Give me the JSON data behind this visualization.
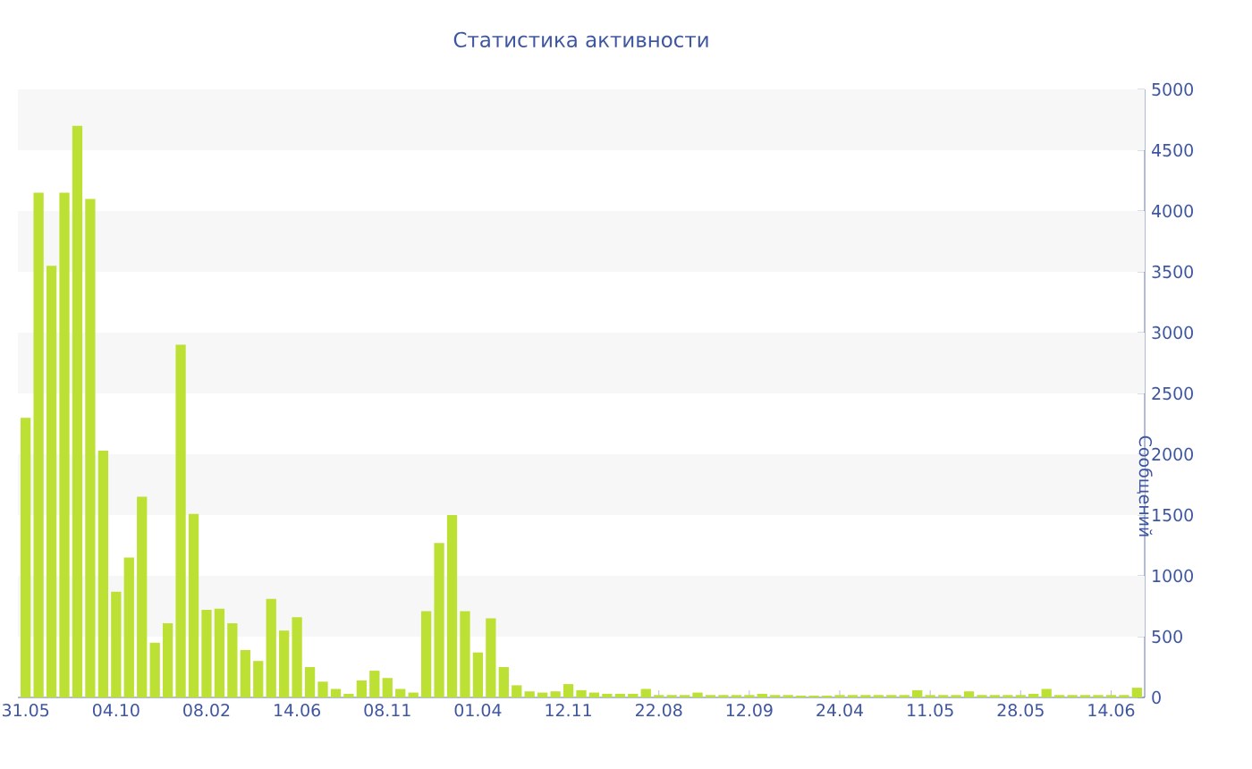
{
  "chart_data": {
    "type": "bar",
    "title": "Статистика активности",
    "ylabel": "Сообщений",
    "color": "#bce033",
    "categories": [
      "31.05",
      null,
      null,
      null,
      null,
      null,
      null,
      "04.10",
      null,
      null,
      null,
      null,
      null,
      null,
      "08.02",
      null,
      null,
      null,
      null,
      null,
      null,
      "14.06",
      null,
      null,
      null,
      null,
      null,
      null,
      "08.11",
      null,
      null,
      null,
      null,
      null,
      null,
      "01.04",
      null,
      null,
      null,
      null,
      null,
      null,
      "12.11",
      null,
      null,
      null,
      null,
      null,
      null,
      "22.08",
      null,
      null,
      null,
      null,
      null,
      null,
      "12.09",
      null,
      null,
      null,
      null,
      null,
      null,
      "24.04",
      null,
      null,
      null,
      null,
      null,
      null,
      "11.05",
      null,
      null,
      null,
      null,
      null,
      null,
      "28.05",
      null,
      null,
      null,
      null,
      null,
      null,
      "14.06",
      null,
      null
    ],
    "values": [
      2300,
      4150,
      3550,
      4150,
      4700,
      4100,
      2030,
      870,
      1150,
      1650,
      450,
      610,
      2900,
      1510,
      720,
      730,
      610,
      390,
      300,
      810,
      550,
      660,
      250,
      130,
      70,
      30,
      140,
      220,
      160,
      70,
      40,
      710,
      1270,
      1500,
      710,
      370,
      650,
      250,
      100,
      50,
      40,
      50,
      110,
      60,
      40,
      30,
      30,
      30,
      70,
      20,
      20,
      20,
      40,
      20,
      20,
      20,
      20,
      30,
      20,
      20,
      15,
      15,
      15,
      20,
      20,
      20,
      20,
      20,
      20,
      60,
      20,
      20,
      20,
      50,
      20,
      20,
      20,
      20,
      30,
      70,
      20,
      20,
      20,
      20,
      20,
      20,
      80
    ],
    "ylim": [
      0,
      5000
    ],
    "yticks": [
      0,
      500,
      1000,
      1500,
      2000,
      2500,
      3000,
      3500,
      4000,
      4500,
      5000
    ],
    "bands": [
      {
        "axis": "y",
        "from": 500,
        "to": 1000,
        "color": "#f7f7f7"
      },
      {
        "axis": "y",
        "from": 1500,
        "to": 2000,
        "color": "#f7f7f7"
      },
      {
        "axis": "y",
        "from": 2500,
        "to": 3000,
        "color": "#f7f7f7"
      },
      {
        "axis": "y",
        "from": 3500,
        "to": 4000,
        "color": "#f7f7f7"
      },
      {
        "axis": "y",
        "from": 4500,
        "to": 5000,
        "color": "#f7f7f7"
      }
    ]
  }
}
